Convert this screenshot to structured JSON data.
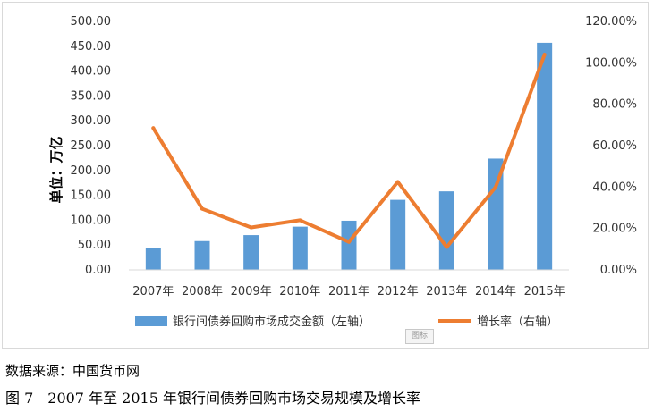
{
  "chart_data": {
    "type": "bar+line",
    "categories": [
      "2007年",
      "2008年",
      "2009年",
      "2010年",
      "2011年",
      "2012年",
      "2013年",
      "2014年",
      "2015年"
    ],
    "series": [
      {
        "name": "银行间债券回购市场成交金额（左轴）",
        "type": "bar",
        "axis": "left",
        "color": "#5b9bd5",
        "values": [
          44.0,
          58.0,
          70.0,
          87.0,
          99.0,
          141.0,
          158.0,
          224.0,
          457.0
        ]
      },
      {
        "name": "增长率（右轴）",
        "type": "line",
        "axis": "right",
        "color": "#ed7d31",
        "values": [
          0.685,
          0.295,
          0.205,
          0.24,
          0.135,
          0.425,
          0.11,
          0.4,
          1.04
        ]
      }
    ],
    "left_axis": {
      "label": "单位：万亿",
      "min": 0,
      "max": 500,
      "step": 50,
      "ticks": [
        "0.00",
        "50.00",
        "100.00",
        "150.00",
        "200.00",
        "250.00",
        "300.00",
        "350.00",
        "400.00",
        "450.00",
        "500.00"
      ]
    },
    "right_axis": {
      "min": 0,
      "max": 1.2,
      "step": 0.2,
      "ticks": [
        "0.00%",
        "20.00%",
        "40.00%",
        "60.00%",
        "80.00%",
        "100.00%",
        "120.00%"
      ]
    },
    "grid": false,
    "legend_position": "bottom"
  },
  "watermark": "图标",
  "source_text": "数据来源：中国货币网",
  "caption_text": "图 7　2007 年至 2015 年银行间债券回购市场交易规模及增长率"
}
